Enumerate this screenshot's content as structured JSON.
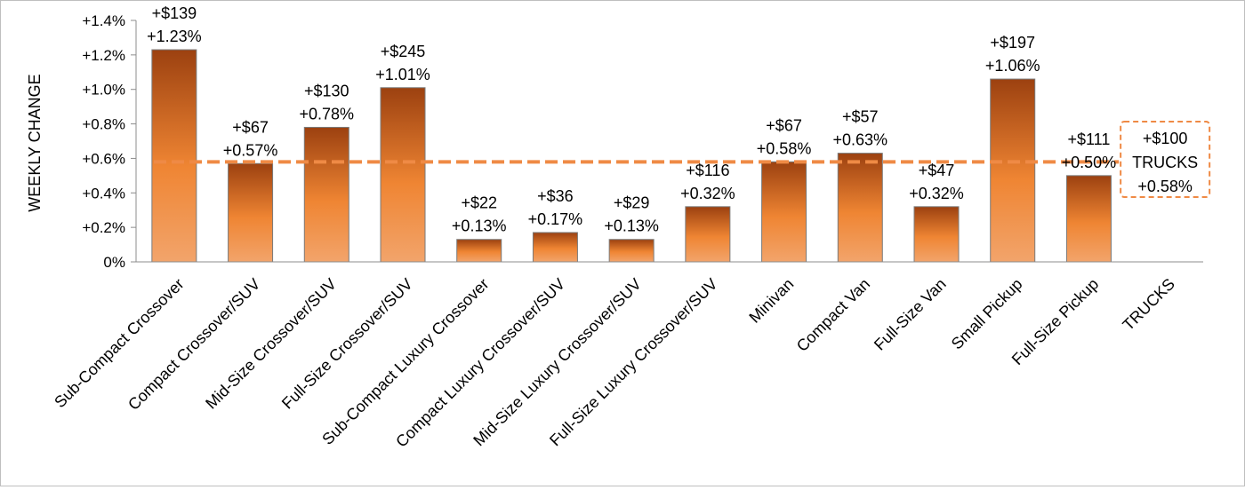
{
  "chart_data": {
    "type": "bar",
    "ylabel": "WEEKLY CHANGE",
    "xlabel": "",
    "ylim": [
      0,
      1.4
    ],
    "yticks": [
      "0%",
      "+0.2%",
      "+0.4%",
      "+0.6%",
      "+0.8%",
      "+1.0%",
      "+1.2%",
      "+1.4%"
    ],
    "categories": [
      "Sub-Compact Crossover",
      "Compact Crossover/SUV",
      "Mid-Size Crossover/SUV",
      "Full-Size Crossover/SUV",
      "Sub-Compact Luxury Crossover",
      "Compact Luxury Crossover/SUV",
      "Mid-Size Luxury Crossover/SUV",
      "Full-Size Luxury Crossover/SUV",
      "Minivan",
      "Compact Van",
      "Full-Size Van",
      "Small Pickup",
      "Full-Size Pickup",
      "TRUCKS"
    ],
    "values": [
      1.23,
      0.57,
      0.78,
      1.01,
      0.13,
      0.17,
      0.13,
      0.32,
      0.58,
      0.63,
      0.32,
      1.06,
      0.5,
      null
    ],
    "dollar_labels": [
      "+$139",
      "+$67",
      "+$130",
      "+$245",
      "+$22",
      "+$36",
      "+$29",
      "+$116",
      "+$67",
      "+$57",
      "+$47",
      "+$197",
      "+$111"
    ],
    "pct_labels": [
      "+1.23%",
      "+0.57%",
      "+0.78%",
      "+1.01%",
      "+0.13%",
      "+0.17%",
      "+0.13%",
      "+0.32%",
      "+0.58%",
      "+0.63%",
      "+0.32%",
      "+1.06%",
      "+0.50%"
    ],
    "reference_line": {
      "value": 0.58,
      "box_lines": [
        "+$100",
        "TRUCKS",
        "+0.58%"
      ]
    },
    "grid": false,
    "legend": "none",
    "colors": {
      "bar_top": "#9c4110",
      "bar_mid": "#ef8533",
      "bar_bottom": "#f2a46b",
      "bar_stroke": "#7a7a7a",
      "reference": "#ef8a45",
      "axis": "#8c8c8c"
    }
  }
}
